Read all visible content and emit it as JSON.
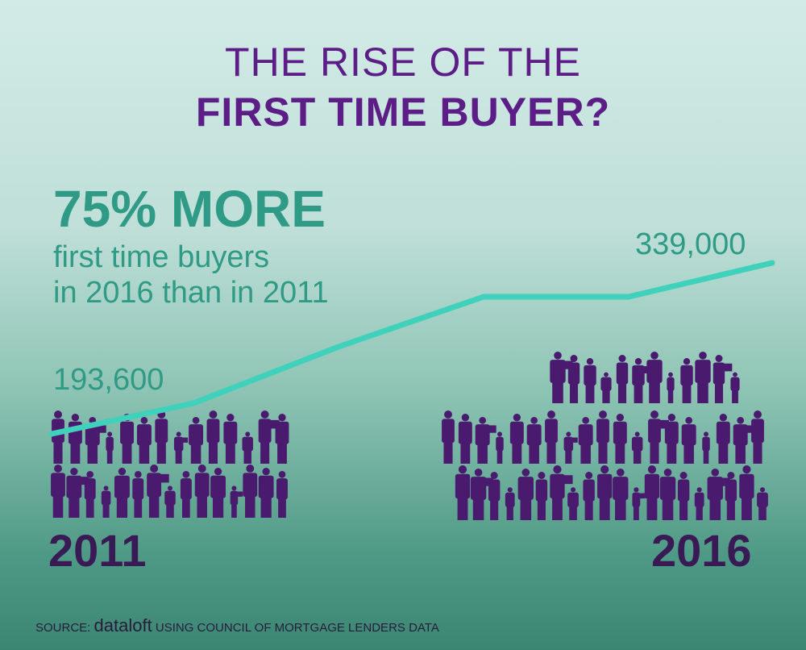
{
  "title": {
    "line1": "THE RISE OF THE",
    "line2": "FIRST TIME BUYER?"
  },
  "headline": "75% MORE",
  "subtext": {
    "line1": "first time buyers",
    "line2": "in 2016 than in 2011"
  },
  "source": {
    "prefix": "SOURCE:",
    "brand": "dataloft",
    "suffix": "USING COUNCIL OF MORTGAGE LENDERS DATA"
  },
  "chart_data": {
    "type": "line",
    "title": "THE RISE OF THE FIRST TIME BUYER?",
    "x": [
      "2011",
      "2016"
    ],
    "series": [
      {
        "values": [
          193600,
          339000
        ],
        "color": "#3fd1bb"
      }
    ],
    "value_labels": [
      "193,600",
      "339,000"
    ],
    "year_labels": [
      "2011",
      "2016"
    ],
    "axes_shown": false,
    "grid": false,
    "pictogram": {
      "color": "#4a1a6e",
      "icon": "people-silhouette-icon",
      "2011_figures_per_row": [
        14,
        15
      ],
      "2016_figures_per_row": [
        12,
        19,
        20
      ]
    }
  }
}
